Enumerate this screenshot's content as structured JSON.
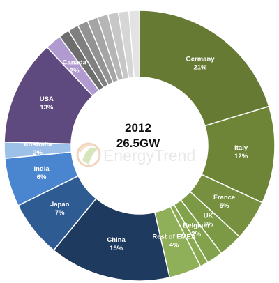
{
  "center": {
    "year": "2012",
    "total": "26.5GW"
  },
  "watermark": {
    "text": "EnergyTrend",
    "icon": "energytrend-logo-icon"
  },
  "chart_data": {
    "type": "pie",
    "donut": true,
    "unit": "%",
    "slices": [
      {
        "label": "Germany",
        "value": 21,
        "pct": "21%",
        "color": "#667a33"
      },
      {
        "label": "Italy",
        "value": 12,
        "pct": "12%",
        "color": "#6e8538"
      },
      {
        "label": "France",
        "value": 5,
        "pct": "5%",
        "color": "#76903f"
      },
      {
        "label": "UK",
        "value": 3,
        "pct": "3%",
        "color": "#7c9a45"
      },
      {
        "label": "Belgium",
        "value": 2,
        "pct": "2%",
        "color": "#83a24c"
      },
      {
        "label": "",
        "value": 1,
        "pct": "",
        "color": "#8aaa52"
      },
      {
        "label": "Rest of EMEA",
        "value": 4,
        "pct": "4%",
        "color": "#8fb058"
      },
      {
        "label": "China",
        "value": 15,
        "pct": "15%",
        "color": "#1f3a5f"
      },
      {
        "label": "Japan",
        "value": 7,
        "pct": "7%",
        "color": "#2f5b93"
      },
      {
        "label": "India",
        "value": 6,
        "pct": "6%",
        "color": "#4a86cf"
      },
      {
        "label": "Australia",
        "value": 2,
        "pct": "2%",
        "color": "#9dc0e8"
      },
      {
        "label": "USA",
        "value": 13,
        "pct": "13%",
        "color": "#5e4a7e"
      },
      {
        "label": "Canada",
        "value": 2,
        "pct": "2%",
        "color": "#b19ad0"
      },
      {
        "label": "",
        "value": 1.3,
        "pct": "",
        "color": "#6d6d6d"
      },
      {
        "label": "",
        "value": 1.3,
        "pct": "",
        "color": "#808080"
      },
      {
        "label": "",
        "value": 1.3,
        "pct": "",
        "color": "#939393"
      },
      {
        "label": "",
        "value": 1.3,
        "pct": "",
        "color": "#a5a5a5"
      },
      {
        "label": "",
        "value": 1.3,
        "pct": "",
        "color": "#b6b6b6"
      },
      {
        "label": "",
        "value": 1.3,
        "pct": "",
        "color": "#c7c7c7"
      },
      {
        "label": "",
        "value": 1.3,
        "pct": "",
        "color": "#d6d6d6"
      },
      {
        "label": "",
        "value": 1.3,
        "pct": "",
        "color": "#e3e3e3"
      }
    ]
  }
}
